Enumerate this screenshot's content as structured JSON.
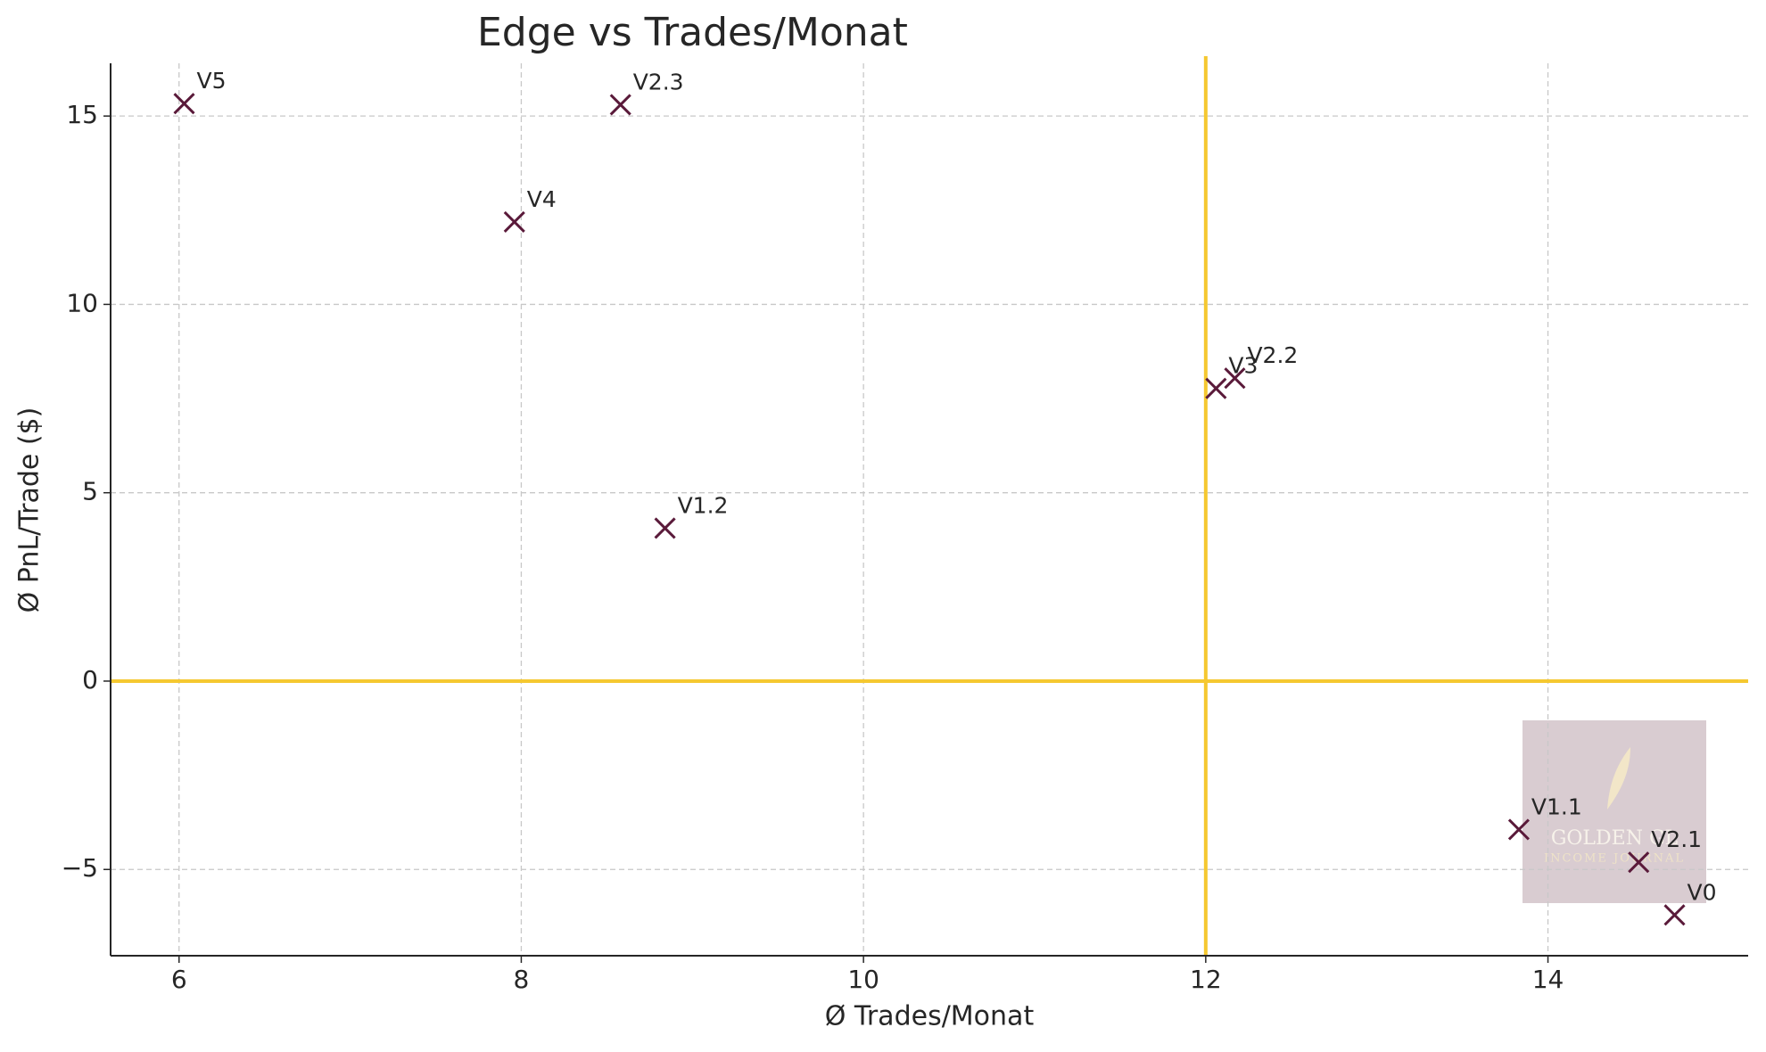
{
  "chart_data": {
    "type": "scatter",
    "title": "Edge vs Trades/Monat",
    "xlabel": "Ø Trades/Monat",
    "ylabel": "Ø PnL/Trade ($)",
    "labels": [
      "V5",
      "V2.3",
      "V4",
      "V1.2",
      "V3",
      "V2.2",
      "V1.1",
      "V2.1",
      "V0"
    ],
    "x": [
      6.03,
      8.58,
      7.96,
      8.84,
      12.06,
      12.17,
      13.83,
      14.53,
      14.74
    ],
    "values": [
      15.33,
      15.3,
      12.19,
      4.06,
      7.77,
      8.04,
      -3.94,
      -4.81,
      -6.21
    ],
    "color": "#5a1a3a",
    "marker": "x",
    "xlim": [
      5.6,
      15.17
    ],
    "ylim": [
      -7.29,
      16.4
    ],
    "xticks": [
      6,
      8,
      10,
      12,
      14
    ],
    "yticks": [
      {
        "value": -5,
        "label": "−5"
      },
      0,
      5,
      10,
      15
    ],
    "grid": true,
    "reference_lines": {
      "color": "#f5c830",
      "y": 0,
      "x": 12
    },
    "watermark": {
      "line1": "GOLDEN GL",
      "line2": "INCOME JOURNAL"
    }
  }
}
